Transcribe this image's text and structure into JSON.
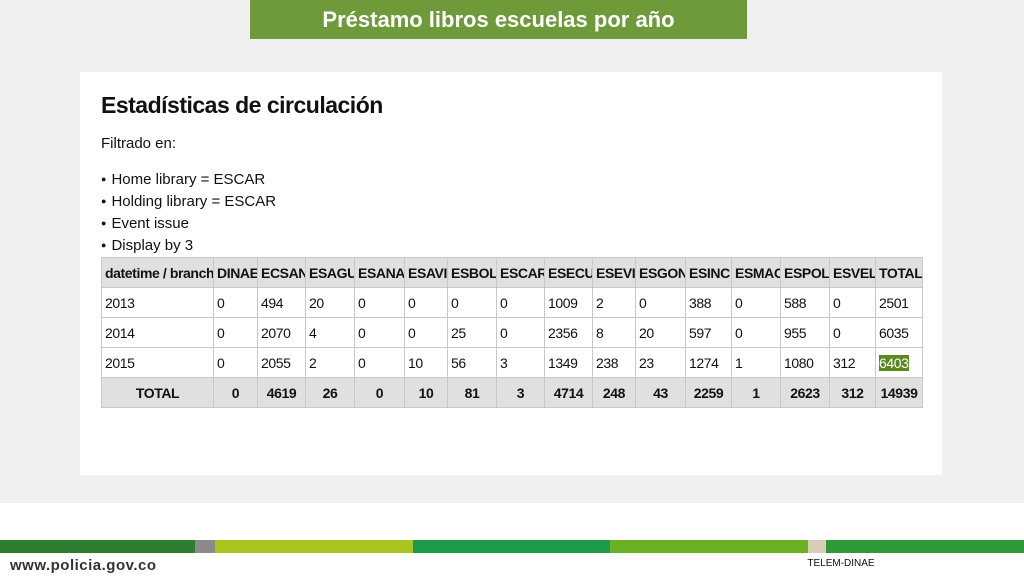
{
  "header": {
    "title": "Préstamo libros escuelas por año"
  },
  "panel": {
    "title": "Estadísticas de circulación",
    "filter_label": "Filtrado en:",
    "filters": [
      "Home library = ESCAR",
      "Holding library = ESCAR",
      "Event issue",
      "Display by 3"
    ]
  },
  "table": {
    "columns": [
      "datetime / branch",
      "DINAE",
      "ECSAN",
      "ESAGU",
      "ESANA",
      "ESAVI",
      "ESBOL",
      "ESCAR",
      "ESECU",
      "ESEVI",
      "ESGON",
      "ESINC",
      "ESMAC",
      "ESPOL",
      "ESVEL",
      "TOTAL"
    ],
    "rows": [
      [
        2013,
        0,
        494,
        20,
        0,
        0,
        0,
        0,
        1009,
        2,
        0,
        388,
        0,
        588,
        0,
        2501
      ],
      [
        2014,
        0,
        2070,
        4,
        0,
        0,
        25,
        0,
        2356,
        8,
        20,
        597,
        0,
        955,
        0,
        6035
      ],
      [
        2015,
        0,
        2055,
        2,
        0,
        10,
        56,
        3,
        1349,
        238,
        23,
        1274,
        1,
        1080,
        312,
        6403
      ]
    ],
    "total_row": [
      "TOTAL",
      0,
      4619,
      26,
      0,
      10,
      81,
      3,
      4714,
      248,
      43,
      2259,
      1,
      2623,
      312,
      14939
    ]
  },
  "footer": {
    "url": "www.policia.gov.co",
    "tag": "TELEM-DINAE"
  }
}
